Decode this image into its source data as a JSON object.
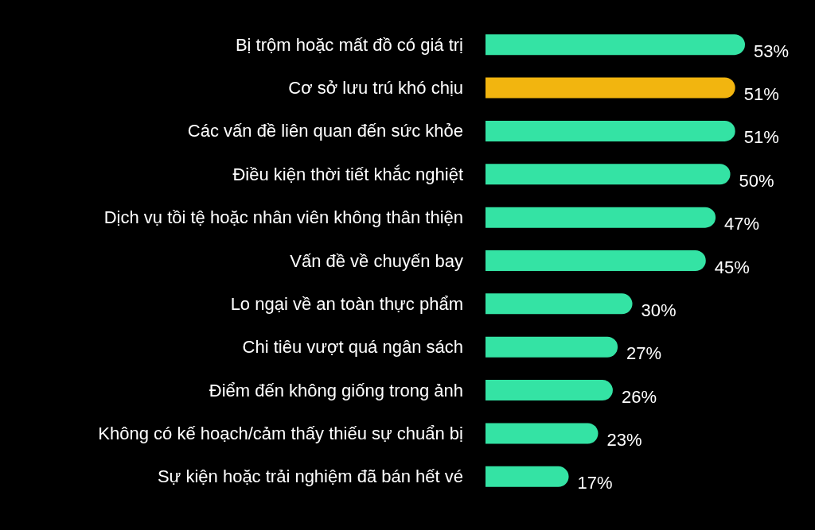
{
  "chart_data": {
    "type": "bar",
    "orientation": "horizontal",
    "categories": [
      "Bị trộm hoặc mất đồ có giá trị",
      "Cơ sở lưu trú khó chịu",
      "Các vấn đề liên quan đến sức khỏe",
      "Điều kiện thời tiết khắc nghiệt",
      "Dịch vụ tồi tệ hoặc nhân viên không thân thiện",
      "Vấn đề về chuyến bay",
      "Lo ngại về an toàn thực phẩm",
      "Chi tiêu vượt quá ngân sách",
      "Điểm đến không giống trong ảnh",
      "Không có kế hoạch/cảm thấy thiếu sự chuẩn bị",
      "Sự kiện hoặc trải nghiệm đã bán hết vé"
    ],
    "values": [
      53,
      51,
      51,
      50,
      47,
      45,
      30,
      27,
      26,
      23,
      17
    ],
    "value_labels": [
      "53%",
      "51%",
      "51%",
      "50%",
      "47%",
      "45%",
      "30%",
      "27%",
      "26%",
      "23%",
      "17%"
    ],
    "colors": [
      "#34e3a4",
      "#f2b50f",
      "#34e3a4",
      "#34e3a4",
      "#34e3a4",
      "#34e3a4",
      "#34e3a4",
      "#34e3a4",
      "#34e3a4",
      "#34e3a4",
      "#34e3a4"
    ],
    "tick_labels": "y"
  }
}
